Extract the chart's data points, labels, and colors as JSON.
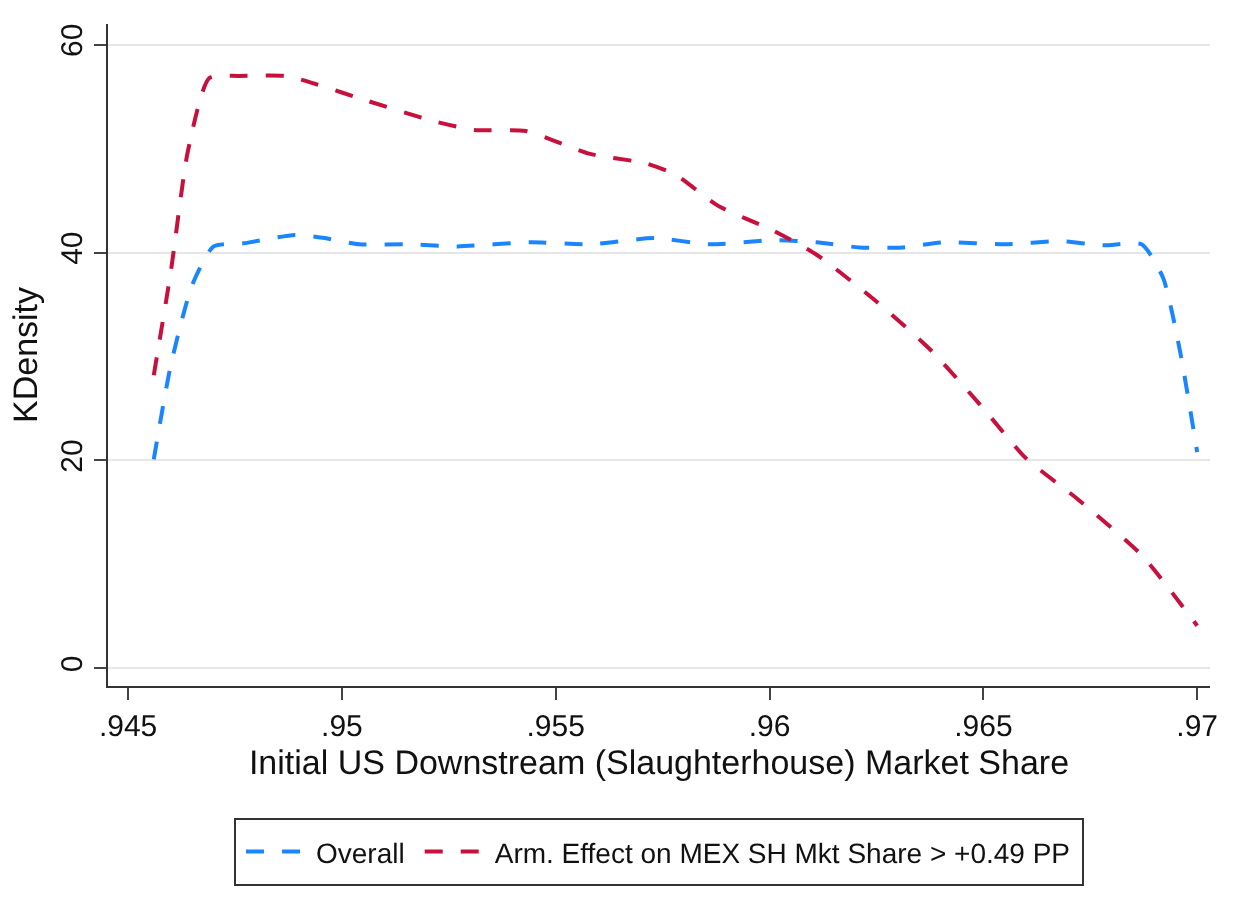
{
  "chart_data": {
    "type": "line",
    "xlabel": "Initial US Downstream (Slaughterhouse) Market Share",
    "ylabel": "KDensity",
    "xlim": [
      0.94453,
      0.9703
    ],
    "xticks": [
      {
        "value": 0.945,
        "label": ".945"
      },
      {
        "value": 0.95,
        "label": ".95"
      },
      {
        "value": 0.955,
        "label": ".955"
      },
      {
        "value": 0.96,
        "label": ".96"
      },
      {
        "value": 0.965,
        "label": ".965"
      },
      {
        "value": 0.97,
        "label": ".97"
      }
    ],
    "ylim": [
      -1.7,
      62
    ],
    "yticks": [
      0,
      20,
      40,
      60
    ],
    "grid": "y",
    "legend": "bottom",
    "line_style": "dashed",
    "series": [
      {
        "name": "Overall",
        "color": "#1a85ff",
        "x": [
          0.9456,
          0.946,
          0.9465,
          0.947,
          0.9477,
          0.9489,
          0.9496,
          0.9504,
          0.9516,
          0.9527,
          0.9544,
          0.9558,
          0.9573,
          0.9586,
          0.9601,
          0.9611,
          0.9621,
          0.9631,
          0.9641,
          0.9655,
          0.9668,
          0.9678,
          0.9687,
          0.9692,
          0.9696,
          0.97
        ],
        "values": [
          20.1,
          29.2,
          36.9,
          40.6,
          40.9,
          41.7,
          41.4,
          40.8,
          40.8,
          40.6,
          41.0,
          40.8,
          41.4,
          40.8,
          41.2,
          41.0,
          40.5,
          40.5,
          41.0,
          40.8,
          41.1,
          40.7,
          40.8,
          37.6,
          30.5,
          20.8
        ]
      },
      {
        "name": "Arm. Effect on MEX SH Mkt Share > +0.49 PP",
        "color": "#c8103c",
        "x": [
          0.9456,
          0.946,
          0.9464,
          0.9469,
          0.9476,
          0.9487,
          0.9494,
          0.9506,
          0.9521,
          0.9531,
          0.9543,
          0.9558,
          0.9571,
          0.9578,
          0.9588,
          0.9601,
          0.9611,
          0.9625,
          0.9638,
          0.965,
          0.966,
          0.9672,
          0.9687,
          0.97
        ],
        "values": [
          28.2,
          38.2,
          49.8,
          56.8,
          57.0,
          57.0,
          56.2,
          54.6,
          52.7,
          51.8,
          51.7,
          49.5,
          48.6,
          47.5,
          44.5,
          42.1,
          39.8,
          35.3,
          30.5,
          25.0,
          20.2,
          16.3,
          10.9,
          4.1
        ]
      }
    ]
  }
}
